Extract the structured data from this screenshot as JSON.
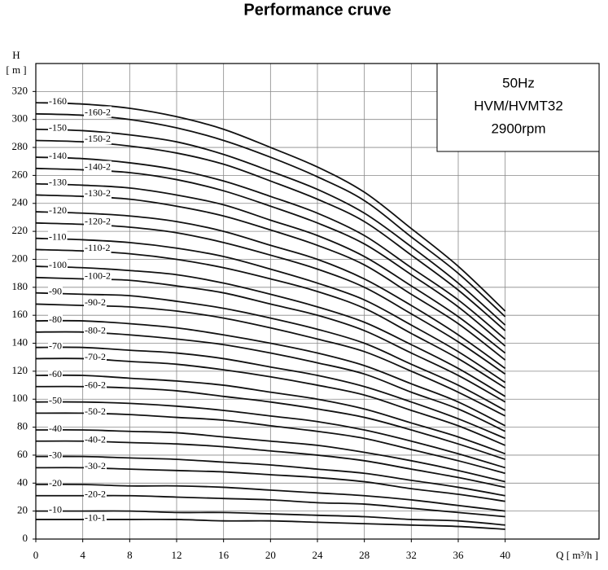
{
  "chart_data": {
    "type": "line",
    "title": "Performance cruve",
    "y_label": "H",
    "y_unit": "[ m ]",
    "x_label": "Q [ m³/h ]",
    "box_lines": [
      "50Hz",
      "HVM/HVMT32",
      "2900rpm"
    ],
    "x": [
      0,
      4,
      8,
      12,
      16,
      20,
      24,
      28,
      32,
      36,
      40
    ],
    "xlim": [
      0,
      48
    ],
    "xticks": [
      0,
      4,
      8,
      12,
      16,
      20,
      24,
      28,
      32,
      36,
      40
    ],
    "ylim": [
      0,
      340
    ],
    "yticks": [
      0,
      20,
      40,
      60,
      80,
      100,
      120,
      140,
      160,
      180,
      200,
      220,
      240,
      260,
      280,
      300,
      320
    ],
    "grid": true,
    "color": "#111111",
    "series": [
      {
        "name": "-160",
        "values": [
          312,
          311,
          308,
          302,
          293,
          280,
          266,
          248,
          222,
          195,
          163
        ]
      },
      {
        "name": "-160-2",
        "values": [
          304,
          303,
          300,
          294,
          285,
          273,
          259,
          242,
          216,
          190,
          159
        ]
      },
      {
        "name": "-150",
        "values": [
          293,
          292,
          289,
          284,
          275,
          263,
          250,
          233,
          209,
          183,
          153
        ]
      },
      {
        "name": "-150-2",
        "values": [
          285,
          284,
          281,
          276,
          268,
          256,
          243,
          227,
          203,
          178,
          149
        ]
      },
      {
        "name": "-140",
        "values": [
          273,
          272,
          269,
          264,
          256,
          245,
          233,
          217,
          194,
          171,
          143
        ]
      },
      {
        "name": "-140-2",
        "values": [
          265,
          264,
          262,
          257,
          249,
          238,
          226,
          211,
          189,
          166,
          138
        ]
      },
      {
        "name": "-130",
        "values": [
          254,
          253,
          251,
          246,
          239,
          228,
          217,
          202,
          181,
          159,
          133
        ]
      },
      {
        "name": "-130-2",
        "values": [
          246,
          245,
          243,
          238,
          231,
          221,
          210,
          196,
          175,
          154,
          128
        ]
      },
      {
        "name": "-120",
        "values": [
          234,
          233,
          231,
          227,
          220,
          210,
          200,
          186,
          167,
          146,
          122
        ]
      },
      {
        "name": "-120-2",
        "values": [
          226,
          225,
          223,
          219,
          212,
          203,
          193,
          180,
          161,
          141,
          118
        ]
      },
      {
        "name": "-110",
        "values": [
          215,
          214,
          212,
          208,
          202,
          193,
          183,
          171,
          153,
          134,
          112
        ]
      },
      {
        "name": "-110-2",
        "values": [
          207,
          206,
          204,
          200,
          194,
          186,
          177,
          165,
          147,
          129,
          108
        ]
      },
      {
        "name": "-100",
        "values": [
          195,
          194,
          192,
          189,
          183,
          175,
          166,
          155,
          139,
          122,
          102
        ]
      },
      {
        "name": "-100-2",
        "values": [
          187,
          186,
          185,
          181,
          176,
          168,
          160,
          149,
          133,
          117,
          98
        ]
      },
      {
        "name": "-90",
        "values": [
          176,
          175,
          174,
          170,
          165,
          158,
          150,
          140,
          125,
          110,
          92
        ]
      },
      {
        "name": "-90-2",
        "values": [
          168,
          167,
          166,
          163,
          158,
          151,
          143,
          134,
          120,
          105,
          88
        ]
      },
      {
        "name": "-80",
        "values": [
          156,
          156,
          154,
          151,
          146,
          140,
          133,
          124,
          111,
          98,
          81
        ]
      },
      {
        "name": "-80-2",
        "values": [
          148,
          148,
          146,
          143,
          139,
          133,
          126,
          118,
          105,
          93,
          77
        ]
      },
      {
        "name": "-70",
        "values": [
          137,
          137,
          135,
          133,
          129,
          123,
          117,
          109,
          98,
          86,
          72
        ]
      },
      {
        "name": "-70-2",
        "values": [
          129,
          129,
          127,
          125,
          121,
          116,
          110,
          103,
          92,
          81,
          67
        ]
      },
      {
        "name": "-60",
        "values": [
          117,
          117,
          115,
          113,
          110,
          105,
          100,
          93,
          83,
          73,
          61
        ]
      },
      {
        "name": "-60-2",
        "values": [
          109,
          109,
          108,
          106,
          102,
          98,
          93,
          87,
          78,
          68,
          57
        ]
      },
      {
        "name": "-50",
        "values": [
          98,
          98,
          97,
          95,
          92,
          88,
          84,
          78,
          70,
          61,
          51
        ]
      },
      {
        "name": "-50-2",
        "values": [
          90,
          90,
          89,
          87,
          85,
          81,
          77,
          72,
          64,
          56,
          47
        ]
      },
      {
        "name": "-40",
        "values": [
          78,
          78,
          77,
          76,
          73,
          70,
          67,
          62,
          56,
          49,
          41
        ]
      },
      {
        "name": "-40-2",
        "values": [
          70,
          70,
          69,
          68,
          66,
          63,
          60,
          56,
          50,
          44,
          37
        ]
      },
      {
        "name": "-30",
        "values": [
          59,
          59,
          58,
          57,
          55,
          53,
          50,
          47,
          42,
          37,
          31
        ]
      },
      {
        "name": "-30-2",
        "values": [
          51,
          51,
          50,
          49,
          48,
          46,
          44,
          41,
          36,
          32,
          27
        ]
      },
      {
        "name": "-20",
        "values": [
          39,
          39,
          38,
          38,
          37,
          35,
          33,
          31,
          28,
          24,
          20
        ]
      },
      {
        "name": "-20-2",
        "values": [
          31,
          31,
          31,
          30,
          29,
          28,
          26,
          25,
          22,
          19,
          16
        ]
      },
      {
        "name": "-10",
        "values": [
          20,
          20,
          20,
          19,
          19,
          18,
          17,
          16,
          14,
          13,
          10
        ]
      },
      {
        "name": "-10-1",
        "values": [
          14,
          14,
          14,
          14,
          13,
          13,
          12,
          11,
          10,
          9,
          7
        ]
      }
    ]
  }
}
